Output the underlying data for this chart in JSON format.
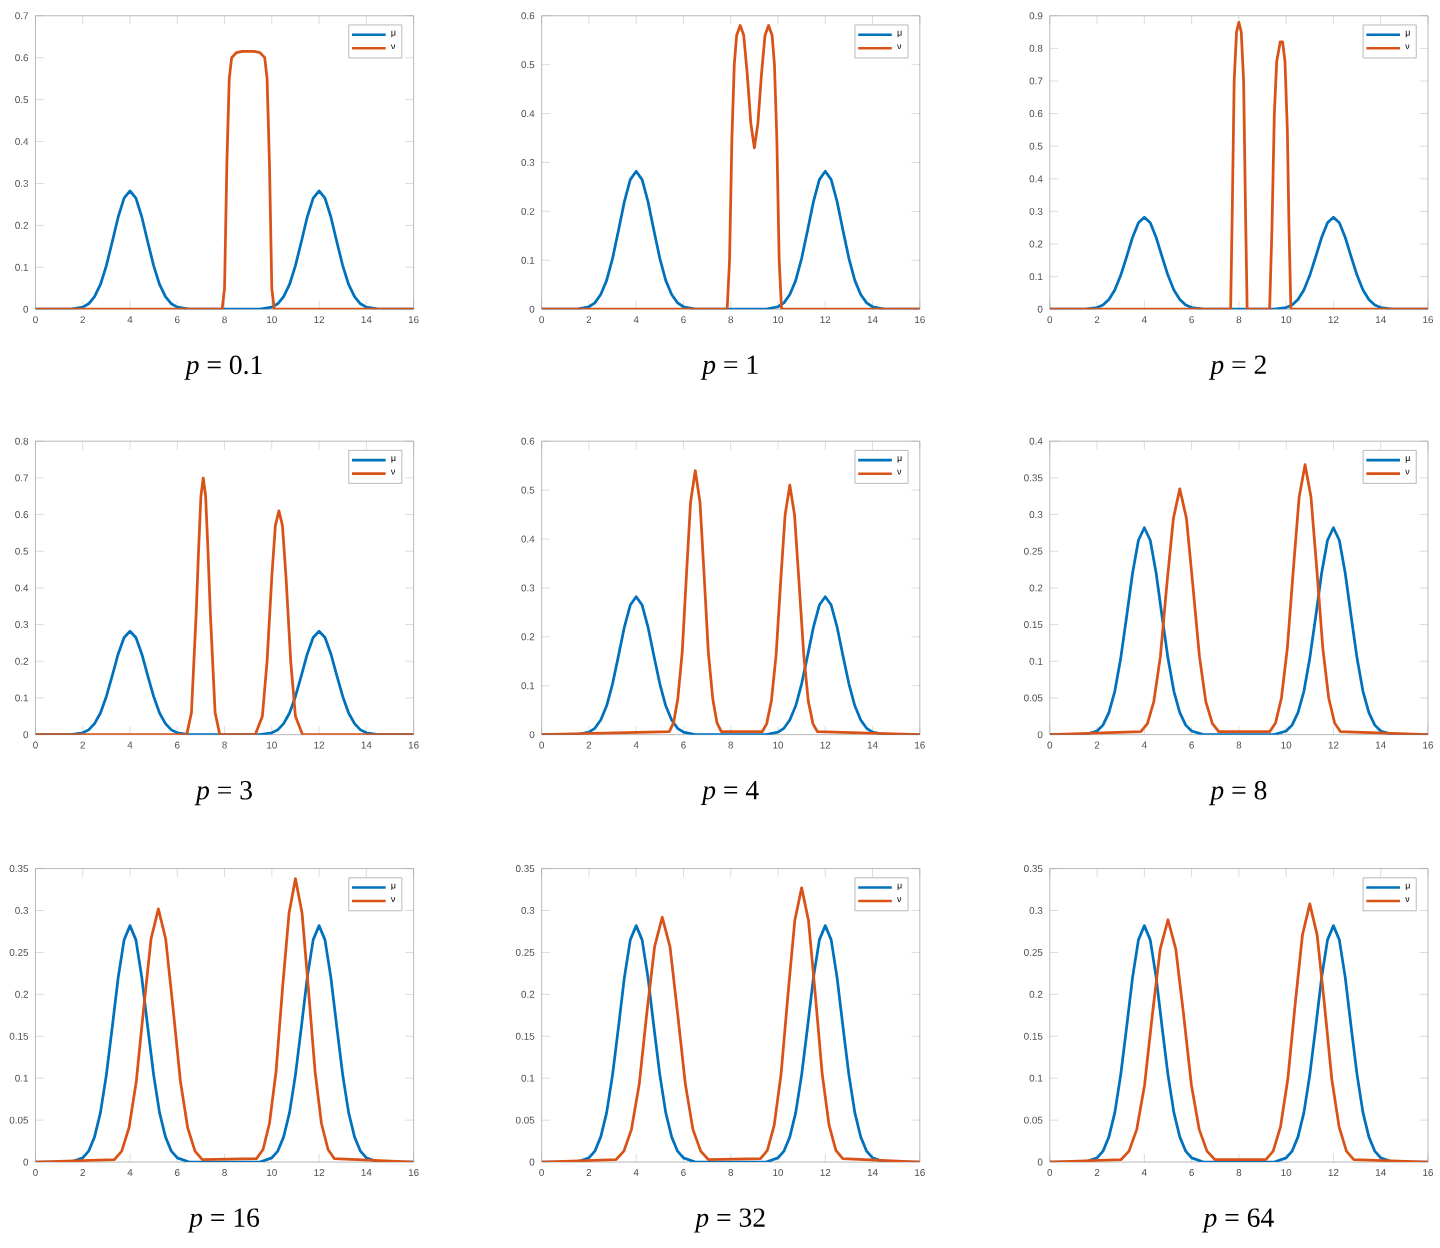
{
  "chart_data": [
    {
      "type": "line",
      "xlabel": "*p* = 0.1",
      "xlim": [
        0,
        16
      ],
      "xticks": [
        0,
        2,
        4,
        6,
        8,
        10,
        12,
        14,
        16
      ],
      "ylim": [
        0,
        0.7
      ],
      "yticks": [
        0,
        0.1,
        0.2,
        0.3,
        0.4,
        0.5,
        0.6,
        0.7
      ],
      "legend": "top right",
      "series": [
        {
          "name": "μ",
          "color": "#0072bd",
          "x": [
            0,
            1.5,
            2,
            2.25,
            2.5,
            2.75,
            3,
            3.25,
            3.5,
            3.75,
            4,
            4.25,
            4.5,
            4.75,
            5,
            5.25,
            5.5,
            5.75,
            6,
            6.5,
            8,
            9.5,
            10,
            10.25,
            10.5,
            10.75,
            11,
            11.25,
            11.5,
            11.75,
            12,
            12.25,
            12.5,
            12.75,
            13,
            13.25,
            13.5,
            13.75,
            14,
            14.5,
            16
          ],
          "values": [
            0,
            0,
            0.005,
            0.013,
            0.03,
            0.059,
            0.104,
            0.161,
            0.22,
            0.265,
            0.282,
            0.265,
            0.22,
            0.161,
            0.104,
            0.059,
            0.03,
            0.013,
            0.005,
            0,
            0,
            0,
            0.005,
            0.013,
            0.03,
            0.059,
            0.104,
            0.161,
            0.22,
            0.265,
            0.282,
            0.265,
            0.22,
            0.161,
            0.104,
            0.059,
            0.03,
            0.013,
            0.005,
            0,
            0
          ]
        },
        {
          "name": "ν",
          "color": "#d95319",
          "x": [
            0,
            7.9,
            8,
            8.1,
            8.2,
            8.3,
            8.5,
            8.75,
            9,
            9.25,
            9.5,
            9.7,
            9.8,
            9.9,
            10,
            10.1,
            16
          ],
          "values": [
            0,
            0,
            0.05,
            0.35,
            0.55,
            0.6,
            0.612,
            0.615,
            0.615,
            0.615,
            0.612,
            0.6,
            0.55,
            0.35,
            0.05,
            0,
            0
          ]
        }
      ]
    },
    {
      "type": "line",
      "xlabel": "*p* = 1",
      "xlim": [
        0,
        16
      ],
      "xticks": [
        0,
        2,
        4,
        6,
        8,
        10,
        12,
        14,
        16
      ],
      "ylim": [
        0,
        0.6
      ],
      "yticks": [
        0,
        0.1,
        0.2,
        0.3,
        0.4,
        0.5,
        0.6
      ],
      "legend": "top right",
      "series": [
        {
          "name": "μ",
          "color": "#0072bd",
          "x": [
            0,
            1.5,
            2,
            2.25,
            2.5,
            2.75,
            3,
            3.25,
            3.5,
            3.75,
            4,
            4.25,
            4.5,
            4.75,
            5,
            5.25,
            5.5,
            5.75,
            6,
            6.5,
            8,
            9.5,
            10,
            10.25,
            10.5,
            10.75,
            11,
            11.25,
            11.5,
            11.75,
            12,
            12.25,
            12.5,
            12.75,
            13,
            13.25,
            13.5,
            13.75,
            14,
            14.5,
            16
          ],
          "values": [
            0,
            0,
            0.005,
            0.013,
            0.03,
            0.059,
            0.104,
            0.161,
            0.22,
            0.265,
            0.282,
            0.265,
            0.22,
            0.161,
            0.104,
            0.059,
            0.03,
            0.013,
            0.005,
            0,
            0,
            0,
            0.005,
            0.013,
            0.03,
            0.059,
            0.104,
            0.161,
            0.22,
            0.265,
            0.282,
            0.265,
            0.22,
            0.161,
            0.104,
            0.059,
            0.03,
            0.013,
            0.005,
            0,
            0
          ]
        },
        {
          "name": "ν",
          "color": "#d95319",
          "x": [
            0,
            7.85,
            7.95,
            8.05,
            8.15,
            8.25,
            8.4,
            8.55,
            8.7,
            8.85,
            9,
            9.15,
            9.3,
            9.45,
            9.6,
            9.75,
            9.85,
            9.95,
            10.05,
            10.15,
            16
          ],
          "values": [
            0,
            0,
            0.1,
            0.35,
            0.5,
            0.56,
            0.58,
            0.56,
            0.48,
            0.38,
            0.33,
            0.38,
            0.48,
            0.56,
            0.58,
            0.56,
            0.5,
            0.35,
            0.1,
            0,
            0
          ]
        }
      ]
    },
    {
      "type": "line",
      "xlabel": "*p* = 2",
      "xlim": [
        0,
        16
      ],
      "xticks": [
        0,
        2,
        4,
        6,
        8,
        10,
        12,
        14,
        16
      ],
      "ylim": [
        0,
        0.9
      ],
      "yticks": [
        0,
        0.1,
        0.2,
        0.3,
        0.4,
        0.5,
        0.6,
        0.7,
        0.8,
        0.9
      ],
      "legend": "top right",
      "series": [
        {
          "name": "μ",
          "color": "#0072bd",
          "x": [
            0,
            1.5,
            2,
            2.25,
            2.5,
            2.75,
            3,
            3.25,
            3.5,
            3.75,
            4,
            4.25,
            4.5,
            4.75,
            5,
            5.25,
            5.5,
            5.75,
            6,
            6.5,
            8,
            9.5,
            10,
            10.25,
            10.5,
            10.75,
            11,
            11.25,
            11.5,
            11.75,
            12,
            12.25,
            12.5,
            12.75,
            13,
            13.25,
            13.5,
            13.75,
            14,
            14.5,
            16
          ],
          "values": [
            0,
            0,
            0.005,
            0.013,
            0.03,
            0.059,
            0.104,
            0.161,
            0.22,
            0.265,
            0.282,
            0.265,
            0.22,
            0.161,
            0.104,
            0.059,
            0.03,
            0.013,
            0.005,
            0,
            0,
            0,
            0.005,
            0.013,
            0.03,
            0.059,
            0.104,
            0.161,
            0.22,
            0.265,
            0.282,
            0.265,
            0.22,
            0.161,
            0.104,
            0.059,
            0.03,
            0.013,
            0.005,
            0,
            0
          ]
        },
        {
          "name": "ν",
          "color": "#d95319",
          "x": [
            0,
            7.65,
            7.72,
            7.8,
            7.9,
            8,
            8.1,
            8.2,
            8.28,
            8.35,
            9.3,
            9.4,
            9.5,
            9.6,
            9.75,
            9.85,
            9.95,
            10.05,
            10.12,
            10.2,
            16
          ],
          "values": [
            0,
            0,
            0.3,
            0.7,
            0.85,
            0.88,
            0.85,
            0.7,
            0.3,
            0,
            0,
            0.25,
            0.6,
            0.76,
            0.82,
            0.82,
            0.76,
            0.55,
            0.25,
            0,
            0
          ]
        }
      ]
    },
    {
      "type": "line",
      "xlabel": "*p* = 3",
      "xlim": [
        0,
        16
      ],
      "xticks": [
        0,
        2,
        4,
        6,
        8,
        10,
        12,
        14,
        16
      ],
      "ylim": [
        0,
        0.8
      ],
      "yticks": [
        0,
        0.1,
        0.2,
        0.3,
        0.4,
        0.5,
        0.6,
        0.7,
        0.8
      ],
      "legend": "top right",
      "series": [
        {
          "name": "μ",
          "color": "#0072bd",
          "x": [
            0,
            1.5,
            2,
            2.25,
            2.5,
            2.75,
            3,
            3.25,
            3.5,
            3.75,
            4,
            4.25,
            4.5,
            4.75,
            5,
            5.25,
            5.5,
            5.75,
            6,
            6.5,
            8,
            9.5,
            10,
            10.25,
            10.5,
            10.75,
            11,
            11.25,
            11.5,
            11.75,
            12,
            12.25,
            12.5,
            12.75,
            13,
            13.25,
            13.5,
            13.75,
            14,
            14.5,
            16
          ],
          "values": [
            0,
            0,
            0.005,
            0.013,
            0.03,
            0.059,
            0.104,
            0.161,
            0.22,
            0.265,
            0.282,
            0.265,
            0.22,
            0.161,
            0.104,
            0.059,
            0.03,
            0.013,
            0.005,
            0,
            0,
            0,
            0.005,
            0.013,
            0.03,
            0.059,
            0.104,
            0.161,
            0.22,
            0.265,
            0.282,
            0.265,
            0.22,
            0.161,
            0.104,
            0.059,
            0.03,
            0.013,
            0.005,
            0,
            0
          ]
        },
        {
          "name": "ν",
          "color": "#d95319",
          "x": [
            0,
            6.4,
            6.6,
            6.8,
            6.9,
            7,
            7.1,
            7.2,
            7.3,
            7.4,
            7.6,
            7.8,
            9.3,
            9.6,
            9.8,
            10,
            10.15,
            10.3,
            10.45,
            10.6,
            10.8,
            11,
            11.3,
            16
          ],
          "values": [
            0,
            0,
            0.06,
            0.33,
            0.5,
            0.65,
            0.7,
            0.65,
            0.5,
            0.33,
            0.06,
            0,
            0,
            0.05,
            0.2,
            0.43,
            0.57,
            0.61,
            0.57,
            0.43,
            0.2,
            0.05,
            0,
            0
          ]
        }
      ]
    },
    {
      "type": "line",
      "xlabel": "*p* = 4",
      "xlim": [
        0,
        16
      ],
      "xticks": [
        0,
        2,
        4,
        6,
        8,
        10,
        12,
        14,
        16
      ],
      "ylim": [
        0,
        0.6
      ],
      "yticks": [
        0,
        0.1,
        0.2,
        0.3,
        0.4,
        0.5,
        0.6
      ],
      "legend": "top right",
      "series": [
        {
          "name": "μ",
          "color": "#0072bd",
          "x": [
            0,
            1.5,
            2,
            2.25,
            2.5,
            2.75,
            3,
            3.25,
            3.5,
            3.75,
            4,
            4.25,
            4.5,
            4.75,
            5,
            5.25,
            5.5,
            5.75,
            6,
            6.5,
            8,
            9.5,
            10,
            10.25,
            10.5,
            10.75,
            11,
            11.25,
            11.5,
            11.75,
            12,
            12.25,
            12.5,
            12.75,
            13,
            13.25,
            13.5,
            13.75,
            14,
            14.5,
            16
          ],
          "values": [
            0,
            0,
            0.005,
            0.013,
            0.03,
            0.059,
            0.104,
            0.161,
            0.22,
            0.265,
            0.282,
            0.265,
            0.22,
            0.161,
            0.104,
            0.059,
            0.03,
            0.013,
            0.005,
            0,
            0,
            0,
            0.005,
            0.013,
            0.03,
            0.059,
            0.104,
            0.161,
            0.22,
            0.265,
            0.282,
            0.265,
            0.22,
            0.161,
            0.104,
            0.059,
            0.03,
            0.013,
            0.005,
            0,
            0
          ]
        },
        {
          "name": "ν",
          "color": "#d95319",
          "x": [
            0,
            5.4,
            5.58,
            5.76,
            5.95,
            6.13,
            6.3,
            6.5,
            6.7,
            6.87,
            7.05,
            7.24,
            7.42,
            7.6,
            9.33,
            9.52,
            9.72,
            9.92,
            10.11,
            10.3,
            10.5,
            10.7,
            10.89,
            11.09,
            11.28,
            11.48,
            11.67,
            16
          ],
          "values": [
            0,
            0.006,
            0.024,
            0.073,
            0.17,
            0.33,
            0.475,
            0.54,
            0.475,
            0.33,
            0.17,
            0.073,
            0.024,
            0.006,
            0.006,
            0.022,
            0.069,
            0.163,
            0.311,
            0.449,
            0.51,
            0.449,
            0.311,
            0.163,
            0.069,
            0.022,
            0.006,
            0
          ]
        }
      ]
    },
    {
      "type": "line",
      "xlabel": "*p* = 8",
      "xlim": [
        0,
        16
      ],
      "xticks": [
        0,
        2,
        4,
        6,
        8,
        10,
        12,
        14,
        16
      ],
      "ylim": [
        0,
        0.4
      ],
      "yticks": [
        0,
        0.05,
        0.1,
        0.15,
        0.2,
        0.25,
        0.3,
        0.35,
        0.4
      ],
      "legend": "top right",
      "series": [
        {
          "name": "μ",
          "color": "#0072bd",
          "x": [
            0,
            1.5,
            2,
            2.25,
            2.5,
            2.75,
            3,
            3.25,
            3.5,
            3.75,
            4,
            4.25,
            4.5,
            4.75,
            5,
            5.25,
            5.5,
            5.75,
            6,
            6.5,
            8,
            9.5,
            10,
            10.25,
            10.5,
            10.75,
            11,
            11.25,
            11.5,
            11.75,
            12,
            12.25,
            12.5,
            12.75,
            13,
            13.25,
            13.5,
            13.75,
            14,
            14.5,
            16
          ],
          "values": [
            0,
            0,
            0.005,
            0.013,
            0.03,
            0.059,
            0.104,
            0.161,
            0.22,
            0.265,
            0.282,
            0.265,
            0.22,
            0.161,
            0.104,
            0.059,
            0.03,
            0.013,
            0.005,
            0,
            0,
            0,
            0.005,
            0.013,
            0.03,
            0.059,
            0.104,
            0.161,
            0.22,
            0.265,
            0.282,
            0.265,
            0.22,
            0.161,
            0.104,
            0.059,
            0.03,
            0.013,
            0.005,
            0,
            0
          ]
        },
        {
          "name": "ν",
          "color": "#d95319",
          "x": [
            0,
            3.85,
            4.13,
            4.4,
            4.68,
            4.95,
            5.23,
            5.5,
            5.78,
            6.05,
            6.33,
            6.6,
            6.88,
            7.15,
            9.3,
            9.55,
            9.8,
            10.05,
            10.3,
            10.55,
            10.8,
            11.05,
            11.3,
            11.55,
            11.8,
            12.05,
            12.3,
            16
          ],
          "values": [
            0,
            0.004,
            0.015,
            0.045,
            0.107,
            0.204,
            0.295,
            0.335,
            0.295,
            0.204,
            0.107,
            0.045,
            0.015,
            0.004,
            0.004,
            0.016,
            0.05,
            0.118,
            0.224,
            0.324,
            0.368,
            0.324,
            0.224,
            0.118,
            0.05,
            0.016,
            0.004,
            0
          ]
        }
      ]
    },
    {
      "type": "line",
      "xlabel": "*p* = 16",
      "xlim": [
        0,
        16
      ],
      "xticks": [
        0,
        2,
        4,
        6,
        8,
        10,
        12,
        14,
        16
      ],
      "ylim": [
        0,
        0.35
      ],
      "yticks": [
        0,
        0.05,
        0.1,
        0.15,
        0.2,
        0.25,
        0.3,
        0.35
      ],
      "legend": "top right",
      "series": [
        {
          "name": "μ",
          "color": "#0072bd",
          "x": [
            0,
            1.5,
            2,
            2.25,
            2.5,
            2.75,
            3,
            3.25,
            3.5,
            3.75,
            4,
            4.25,
            4.5,
            4.75,
            5,
            5.25,
            5.5,
            5.75,
            6,
            6.5,
            8,
            9.5,
            10,
            10.25,
            10.5,
            10.75,
            11,
            11.25,
            11.5,
            11.75,
            12,
            12.25,
            12.5,
            12.75,
            13,
            13.25,
            13.5,
            13.75,
            14,
            14.5,
            16
          ],
          "values": [
            0,
            0,
            0.005,
            0.013,
            0.03,
            0.059,
            0.104,
            0.161,
            0.22,
            0.265,
            0.282,
            0.265,
            0.22,
            0.161,
            0.104,
            0.059,
            0.03,
            0.013,
            0.005,
            0,
            0,
            0,
            0.005,
            0.013,
            0.03,
            0.059,
            0.104,
            0.161,
            0.22,
            0.265,
            0.282,
            0.265,
            0.22,
            0.161,
            0.104,
            0.059,
            0.03,
            0.013,
            0.005,
            0,
            0
          ]
        },
        {
          "name": "ν",
          "color": "#d95319",
          "x": [
            0,
            3.34,
            3.65,
            3.96,
            4.27,
            4.58,
            4.89,
            5.2,
            5.51,
            5.82,
            6.13,
            6.44,
            6.75,
            7.06,
            9.35,
            9.63,
            9.9,
            10.18,
            10.45,
            10.73,
            11,
            11.28,
            11.55,
            11.83,
            12.1,
            12.38,
            12.65,
            16
          ],
          "values": [
            0,
            0.003,
            0.013,
            0.041,
            0.097,
            0.184,
            0.266,
            0.302,
            0.266,
            0.184,
            0.097,
            0.041,
            0.013,
            0.003,
            0.004,
            0.015,
            0.046,
            0.108,
            0.206,
            0.297,
            0.338,
            0.297,
            0.206,
            0.108,
            0.046,
            0.015,
            0.004,
            0
          ]
        }
      ]
    },
    {
      "type": "line",
      "xlabel": "*p* = 32",
      "xlim": [
        0,
        16
      ],
      "xticks": [
        0,
        2,
        4,
        6,
        8,
        10,
        12,
        14,
        16
      ],
      "ylim": [
        0,
        0.35
      ],
      "yticks": [
        0,
        0.05,
        0.1,
        0.15,
        0.2,
        0.25,
        0.3,
        0.35
      ],
      "legend": "top right",
      "series": [
        {
          "name": "μ",
          "color": "#0072bd",
          "x": [
            0,
            1.5,
            2,
            2.25,
            2.5,
            2.75,
            3,
            3.25,
            3.5,
            3.75,
            4,
            4.25,
            4.5,
            4.75,
            5,
            5.25,
            5.5,
            5.75,
            6,
            6.5,
            8,
            9.5,
            10,
            10.25,
            10.5,
            10.75,
            11,
            11.25,
            11.5,
            11.75,
            12,
            12.25,
            12.5,
            12.75,
            13,
            13.25,
            13.5,
            13.75,
            14,
            14.5,
            16
          ],
          "values": [
            0,
            0,
            0.005,
            0.013,
            0.03,
            0.059,
            0.104,
            0.161,
            0.22,
            0.265,
            0.282,
            0.265,
            0.22,
            0.161,
            0.104,
            0.059,
            0.03,
            0.013,
            0.005,
            0,
            0,
            0,
            0.005,
            0.013,
            0.03,
            0.059,
            0.104,
            0.161,
            0.22,
            0.265,
            0.282,
            0.265,
            0.22,
            0.161,
            0.104,
            0.059,
            0.03,
            0.013,
            0.005,
            0,
            0
          ]
        },
        {
          "name": "ν",
          "color": "#d95319",
          "x": [
            0,
            3.15,
            3.48,
            3.8,
            4.13,
            4.45,
            4.78,
            5.1,
            5.43,
            5.75,
            6.08,
            6.4,
            6.73,
            7.05,
            9.26,
            9.55,
            9.84,
            10.13,
            10.42,
            10.71,
            11,
            11.29,
            11.58,
            11.87,
            12.16,
            12.45,
            12.74,
            16
          ],
          "values": [
            0,
            0.003,
            0.013,
            0.039,
            0.093,
            0.178,
            0.257,
            0.292,
            0.257,
            0.178,
            0.093,
            0.039,
            0.013,
            0.003,
            0.004,
            0.014,
            0.044,
            0.105,
            0.199,
            0.288,
            0.327,
            0.288,
            0.199,
            0.105,
            0.044,
            0.014,
            0.004,
            0
          ]
        }
      ]
    },
    {
      "type": "line",
      "xlabel": "*p* = 64",
      "xlim": [
        0,
        16
      ],
      "xticks": [
        0,
        2,
        4,
        6,
        8,
        10,
        12,
        14,
        16
      ],
      "ylim": [
        0,
        0.35
      ],
      "yticks": [
        0,
        0.05,
        0.1,
        0.15,
        0.2,
        0.25,
        0.3,
        0.35
      ],
      "legend": "top right",
      "series": [
        {
          "name": "μ",
          "color": "#0072bd",
          "x": [
            0,
            1.5,
            2,
            2.25,
            2.5,
            2.75,
            3,
            3.25,
            3.5,
            3.75,
            4,
            4.25,
            4.5,
            4.75,
            5,
            5.25,
            5.5,
            5.75,
            6,
            6.5,
            8,
            9.5,
            10,
            10.25,
            10.5,
            10.75,
            11,
            11.25,
            11.5,
            11.75,
            12,
            12.25,
            12.5,
            12.75,
            13,
            13.25,
            13.5,
            13.75,
            14,
            14.5,
            16
          ],
          "values": [
            0,
            0,
            0.005,
            0.013,
            0.03,
            0.059,
            0.104,
            0.161,
            0.22,
            0.265,
            0.282,
            0.265,
            0.22,
            0.161,
            0.104,
            0.059,
            0.03,
            0.013,
            0.005,
            0,
            0,
            0,
            0.005,
            0.013,
            0.03,
            0.059,
            0.104,
            0.161,
            0.22,
            0.265,
            0.282,
            0.265,
            0.22,
            0.161,
            0.104,
            0.059,
            0.03,
            0.013,
            0.005,
            0,
            0
          ]
        },
        {
          "name": "ν",
          "color": "#d95319",
          "x": [
            0,
            3.02,
            3.35,
            3.68,
            4.01,
            4.34,
            4.67,
            5,
            5.33,
            5.66,
            5.99,
            6.32,
            6.65,
            6.98,
            9.14,
            9.45,
            9.76,
            10.07,
            10.38,
            10.69,
            11,
            11.31,
            11.62,
            11.93,
            12.24,
            12.55,
            12.86,
            16
          ],
          "values": [
            0,
            0.003,
            0.013,
            0.039,
            0.092,
            0.176,
            0.254,
            0.289,
            0.254,
            0.176,
            0.092,
            0.039,
            0.013,
            0.003,
            0.003,
            0.013,
            0.042,
            0.099,
            0.188,
            0.271,
            0.308,
            0.271,
            0.188,
            0.099,
            0.042,
            0.013,
            0.003,
            0
          ]
        }
      ]
    }
  ]
}
